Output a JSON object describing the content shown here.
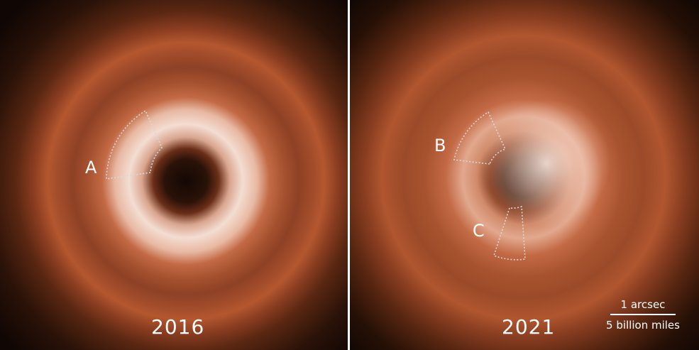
{
  "panels": [
    {
      "year": "2016",
      "labels": [
        "A"
      ]
    },
    {
      "year": "2021",
      "labels": [
        "B",
        "C"
      ]
    }
  ],
  "scale_bar": {
    "top": "1 arcsec",
    "bottom": "5 billion miles"
  },
  "colors": {
    "disk": "#c36a45",
    "ring": "#f3ddd2",
    "background": "#100604",
    "annotation": "#d8d8d8"
  }
}
